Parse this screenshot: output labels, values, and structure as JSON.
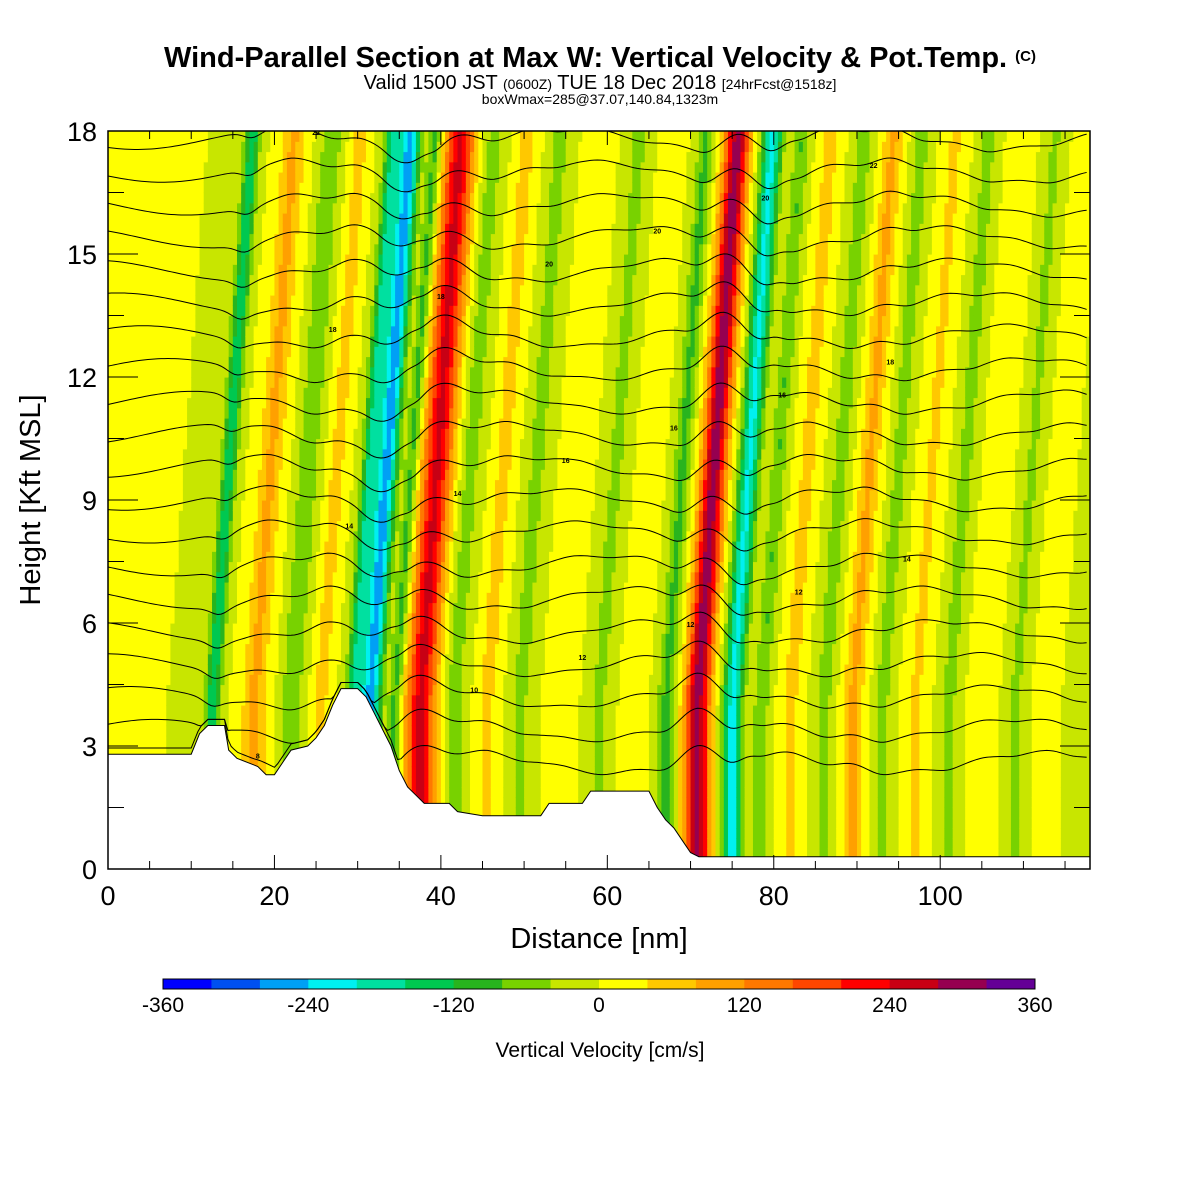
{
  "header": {
    "title": "Wind-Parallel Section at Max W: Vertical Velocity & Pot.Temp.",
    "title_unit": "(C)",
    "valid_prefix": "Valid 1500 JST",
    "valid_utc": "(0600Z)",
    "valid_suffix": "TUE 18 Dec 2018",
    "forecast": "[24hrFcst@1518z]",
    "box_line": "boxWmax=285@37.07,140.84,1323m"
  },
  "chart_data": {
    "type": "heatmap",
    "xlabel": "Distance [nm]",
    "ylabel": "Height [Kft MSL]",
    "xlim": [
      0,
      118
    ],
    "ylim": [
      0,
      18
    ],
    "xticks": [
      0,
      20,
      40,
      60,
      80,
      100
    ],
    "yticks": [
      0,
      3,
      6,
      9,
      12,
      15,
      18
    ],
    "colorbar": {
      "label": "Vertical Velocity [cm/s]",
      "range": [
        -360,
        360
      ],
      "step": 40,
      "tick_labels": [
        -360,
        -240,
        -120,
        0,
        120,
        240,
        360
      ],
      "colors": [
        "#0000ff",
        "#0050f0",
        "#00a0f5",
        "#00f0f0",
        "#00e0a0",
        "#00c850",
        "#28b41e",
        "#78d200",
        "#c8e600",
        "#ffff00",
        "#ffc800",
        "#ffa000",
        "#ff7800",
        "#ff4600",
        "#ff0000",
        "#c80014",
        "#960050",
        "#640096"
      ]
    },
    "bands": [
      {
        "x": 12.5,
        "w": -150,
        "width": 0.9
      },
      {
        "x": 17.5,
        "w": 90,
        "width": 1.4
      },
      {
        "x": 22,
        "w": -80,
        "width": 1.2
      },
      {
        "x": 25.5,
        "w": 60,
        "width": 1.0
      },
      {
        "x": 29.5,
        "w": -170,
        "width": 1.0
      },
      {
        "x": 31.5,
        "w": -260,
        "width": 1.2
      },
      {
        "x": 34.5,
        "w": -100,
        "width": 0.8
      },
      {
        "x": 37.5,
        "w": 250,
        "width": 1.8
      },
      {
        "x": 41.5,
        "w": -60,
        "width": 1.2
      },
      {
        "x": 45.5,
        "w": 60,
        "width": 1.1
      },
      {
        "x": 49.5,
        "w": -60,
        "width": 1.1
      },
      {
        "x": 54.5,
        "w": 40,
        "width": 1.2
      },
      {
        "x": 59,
        "w": -50,
        "width": 1.3
      },
      {
        "x": 63,
        "w": 40,
        "width": 1.1
      },
      {
        "x": 67,
        "w": -90,
        "width": 1.0
      },
      {
        "x": 70.8,
        "w": 300,
        "width": 1.5
      },
      {
        "x": 75,
        "w": -210,
        "width": 1.2
      },
      {
        "x": 78.5,
        "w": -80,
        "width": 0.9
      },
      {
        "x": 82,
        "w": 60,
        "width": 1.1
      },
      {
        "x": 86,
        "w": -60,
        "width": 1.1
      },
      {
        "x": 89.5,
        "w": 90,
        "width": 1.2
      },
      {
        "x": 93,
        "w": -60,
        "width": 1.0
      },
      {
        "x": 97,
        "w": 50,
        "width": 1.1
      },
      {
        "x": 101,
        "w": -60,
        "width": 1.0
      },
      {
        "x": 105,
        "w": 40,
        "width": 1.1
      },
      {
        "x": 109,
        "w": -50,
        "width": 1.0
      },
      {
        "x": 113,
        "w": 40,
        "width": 1.1
      },
      {
        "x": 116,
        "w": -40,
        "width": 1.0
      }
    ],
    "terrain": [
      [
        0,
        2.8
      ],
      [
        10,
        2.8
      ],
      [
        11,
        3.3
      ],
      [
        12,
        3.5
      ],
      [
        14,
        3.5
      ],
      [
        14.5,
        2.9
      ],
      [
        15.5,
        2.7
      ],
      [
        18,
        2.5
      ],
      [
        19,
        2.3
      ],
      [
        20,
        2.3
      ],
      [
        21,
        2.6
      ],
      [
        22,
        2.9
      ],
      [
        24,
        3.0
      ],
      [
        25,
        3.2
      ],
      [
        26,
        3.5
      ],
      [
        27,
        4.0
      ],
      [
        28,
        4.4
      ],
      [
        30,
        4.4
      ],
      [
        31,
        4.2
      ],
      [
        32,
        3.8
      ],
      [
        33,
        3.4
      ],
      [
        34,
        3.0
      ],
      [
        35,
        2.4
      ],
      [
        36,
        2.0
      ],
      [
        37,
        1.8
      ],
      [
        38,
        1.6
      ],
      [
        41,
        1.6
      ],
      [
        42,
        1.4
      ],
      [
        45,
        1.3
      ],
      [
        52,
        1.3
      ],
      [
        53,
        1.6
      ],
      [
        57,
        1.6
      ],
      [
        58,
        1.9
      ],
      [
        65,
        1.9
      ],
      [
        66,
        1.5
      ],
      [
        67,
        1.2
      ],
      [
        68,
        1.0
      ],
      [
        69,
        0.7
      ],
      [
        70,
        0.4
      ],
      [
        71,
        0.3
      ],
      [
        118,
        0.3
      ]
    ],
    "isentropes": [
      {
        "base": 2.6,
        "label": "8"
      },
      {
        "base": 3.4,
        "label": "10"
      },
      {
        "base": 4.2,
        "label": "10"
      },
      {
        "base": 5.0,
        "label": "12"
      },
      {
        "base": 5.8,
        "label": "12"
      },
      {
        "base": 6.6,
        "label": "12"
      },
      {
        "base": 7.4,
        "label": "14"
      },
      {
        "base": 8.2,
        "label": "14"
      },
      {
        "base": 9.0,
        "label": "14"
      },
      {
        "base": 9.8,
        "label": "16"
      },
      {
        "base": 10.6,
        "label": "16"
      },
      {
        "base": 11.4,
        "label": "16"
      },
      {
        "base": 12.2,
        "label": "18"
      },
      {
        "base": 13.0,
        "label": "18"
      },
      {
        "base": 13.8,
        "label": "18"
      },
      {
        "base": 14.6,
        "label": "20"
      },
      {
        "base": 15.4,
        "label": "20"
      },
      {
        "base": 16.2,
        "label": "20"
      },
      {
        "base": 17.0,
        "label": "22"
      },
      {
        "base": 17.8,
        "label": "22"
      }
    ]
  }
}
